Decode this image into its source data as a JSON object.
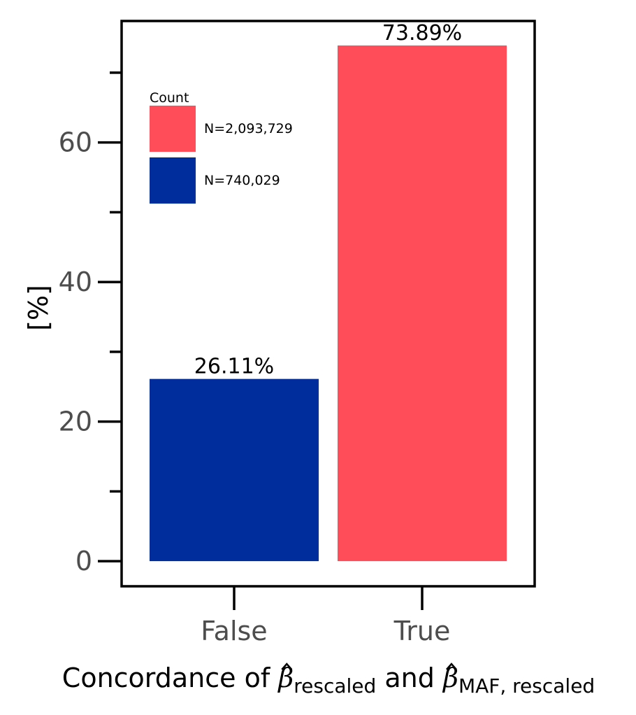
{
  "chart_data": {
    "type": "bar",
    "categories": [
      "False",
      "True"
    ],
    "values": [
      26.11,
      73.89
    ],
    "data_labels": [
      "26.11%",
      "73.89%"
    ],
    "colors": [
      "#002d9c",
      "#ff4d5a"
    ],
    "ylabel": "[%]",
    "xlabel": {
      "prefix": "Concordance of ",
      "beta": "β",
      "sub1": "rescaled",
      "mid": " and ",
      "sub2": "MAF, rescaled"
    },
    "ylim": [
      -3.6,
      77.4
    ],
    "yticks": [
      0,
      20,
      40,
      60
    ],
    "yticks_minor": [
      10,
      30,
      50,
      70
    ],
    "ytick_labels": [
      "0",
      "20",
      "40",
      "60"
    ],
    "grid": false,
    "legend": {
      "title": "Count",
      "placement": "top-left",
      "entries": [
        {
          "label": "N=2,093,729",
          "color": "#ff4d5a"
        },
        {
          "label": "N=740,029",
          "color": "#002d9c"
        }
      ]
    }
  }
}
